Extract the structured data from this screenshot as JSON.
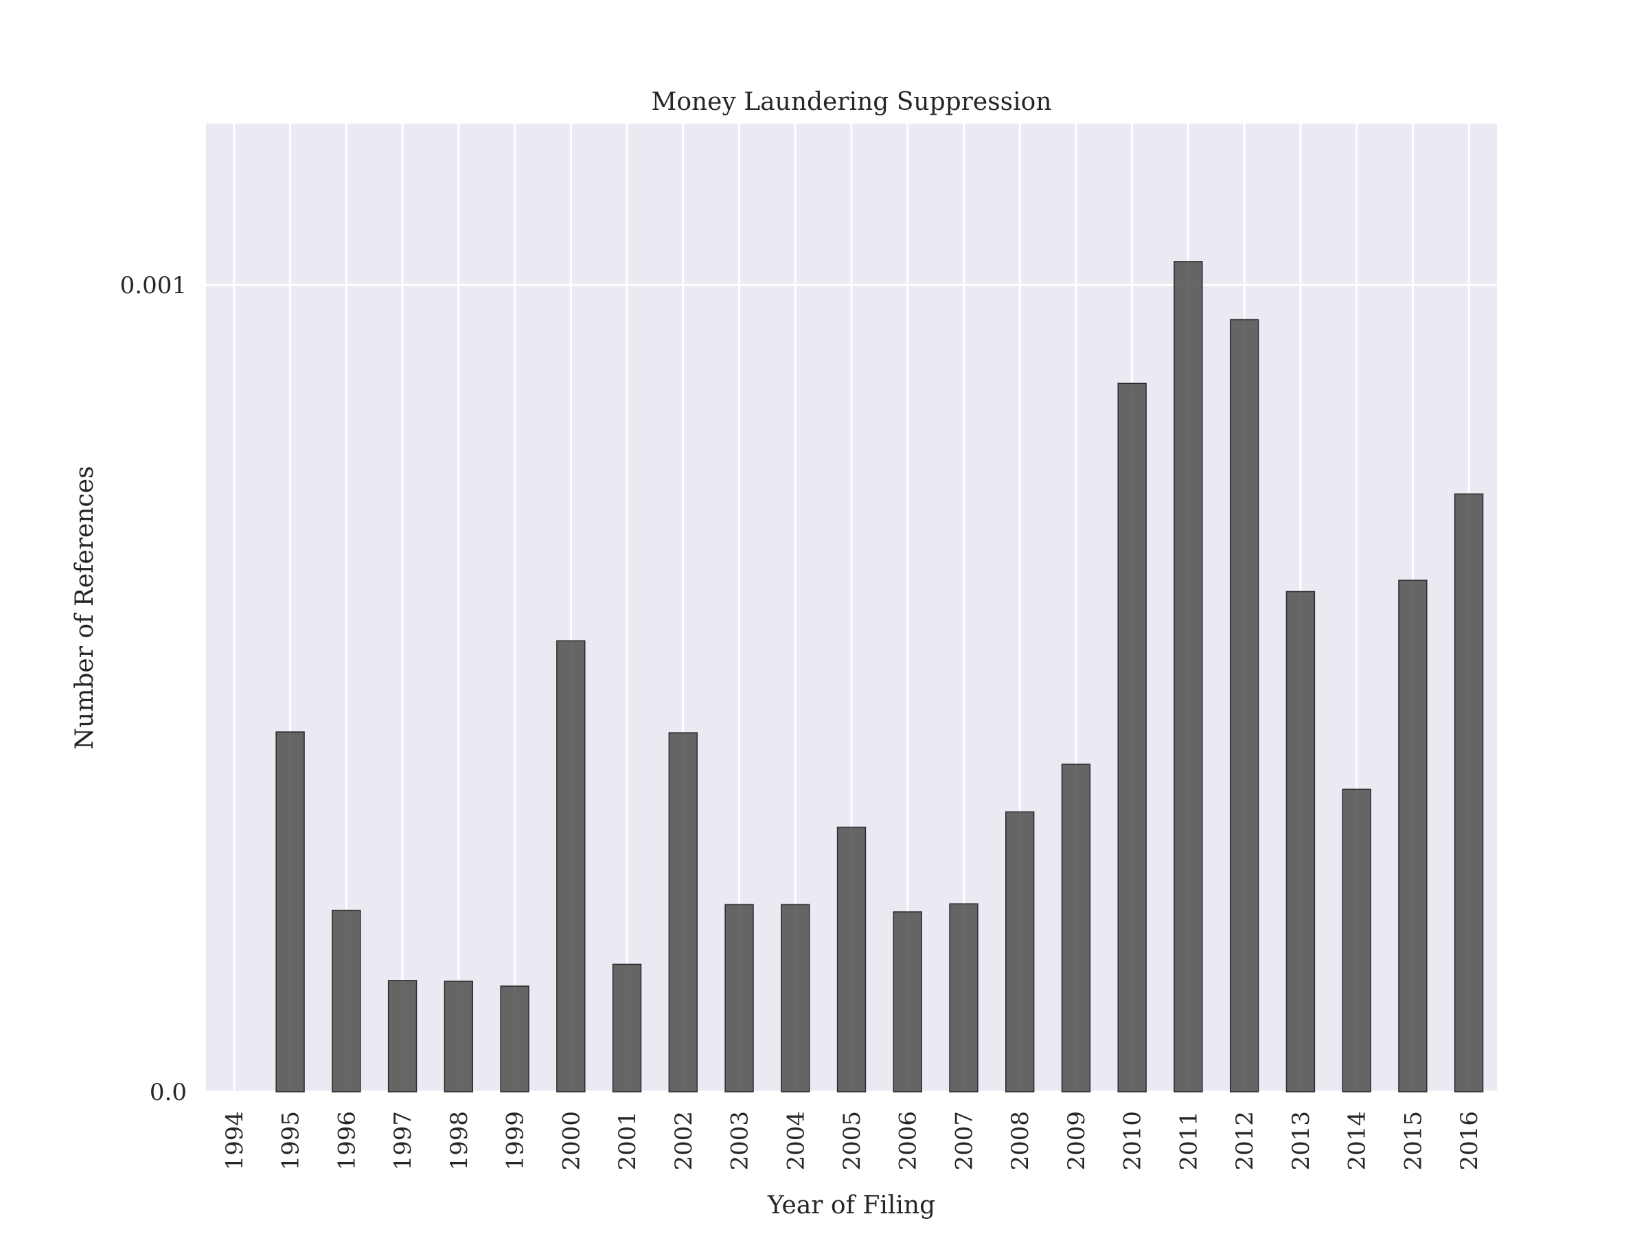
{
  "chart_data": {
    "type": "bar",
    "title": "Money Laundering Suppression",
    "xlabel": "Year of Filing",
    "ylabel": "Number of References",
    "categories": [
      "1994",
      "1995",
      "1996",
      "1997",
      "1998",
      "1999",
      "2000",
      "2001",
      "2002",
      "2003",
      "2004",
      "2005",
      "2006",
      "2007",
      "2008",
      "2009",
      "2010",
      "2011",
      "2012",
      "2013",
      "2014",
      "2015",
      "2016"
    ],
    "values": [
      0.0,
      0.000446,
      0.000225,
      0.000138,
      0.000137,
      0.000131,
      0.000559,
      0.000158,
      0.000445,
      0.000232,
      0.000232,
      0.000328,
      0.000223,
      0.000233,
      0.000347,
      0.000406,
      0.000878,
      0.001029,
      0.000957,
      0.00062,
      0.000375,
      0.000634,
      0.000741
    ],
    "yticks": [
      0.0,
      0.001
    ],
    "ytick_labels": [
      "0.0",
      "0.001"
    ],
    "ylim": [
      0,
      0.0012
    ],
    "grid": true,
    "bar_color": "#4d4d4d",
    "background_color": "#eaeaf2"
  }
}
